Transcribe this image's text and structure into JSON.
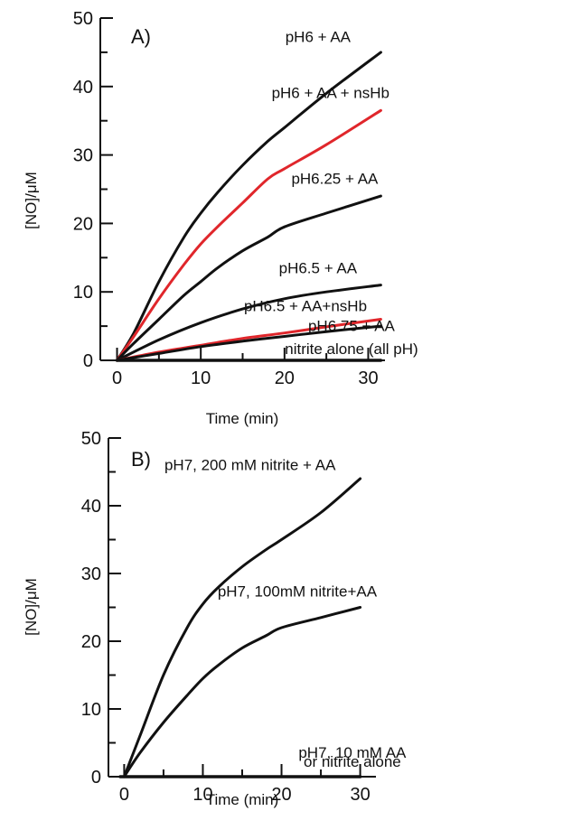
{
  "colors": {
    "black": "#111111",
    "red": "#e0262b"
  },
  "chart_data": [
    {
      "type": "line",
      "panel_label": "A)",
      "xlabel": "Time (min)",
      "ylabel": "[NO]/μM",
      "xlim": [
        -2,
        32
      ],
      "ylim": [
        0,
        50
      ],
      "xticks": [
        0,
        10,
        20,
        30
      ],
      "yticks": [
        0,
        10,
        20,
        30,
        40,
        50
      ],
      "grid": false,
      "series": [
        {
          "name": "pH6 + AA",
          "color": "#111111",
          "x": [
            0,
            2,
            5,
            8,
            10,
            12,
            15,
            18,
            20,
            25,
            31.5
          ],
          "y": [
            0,
            4,
            11.5,
            18,
            21.5,
            24.5,
            28.5,
            32,
            34,
            39,
            45
          ]
        },
        {
          "name": "pH6 + AA + nsHb",
          "color": "#e0262b",
          "x": [
            0,
            2,
            5,
            8,
            10,
            12,
            15,
            18,
            20,
            25,
            31.5
          ],
          "y": [
            0,
            3.5,
            9,
            14,
            17,
            19.5,
            23,
            26.5,
            28,
            31.5,
            36.5
          ]
        },
        {
          "name": "pH6.25 + AA",
          "color": "#111111",
          "x": [
            0,
            2,
            5,
            8,
            10,
            12,
            15,
            18,
            20,
            25,
            31.5
          ],
          "y": [
            0,
            2.5,
            6,
            9.5,
            11.5,
            13.5,
            16,
            18,
            19.5,
            21.5,
            24
          ]
        },
        {
          "name": "pH6.5 + AA",
          "color": "#111111",
          "x": [
            0,
            5,
            10,
            15,
            20,
            25,
            31.5
          ],
          "y": [
            0,
            3,
            5.5,
            7.5,
            9,
            10,
            11
          ]
        },
        {
          "name": "pH6.5 + AA+nsHb",
          "color": "#e0262b",
          "x": [
            0,
            5,
            10,
            15,
            20,
            25,
            31.5
          ],
          "y": [
            0,
            1.2,
            2.2,
            3.2,
            4,
            4.9,
            6
          ]
        },
        {
          "name": "pH6.75 + AA",
          "color": "#111111",
          "x": [
            0,
            5,
            10,
            15,
            20,
            25,
            31.5
          ],
          "y": [
            0,
            1,
            2,
            2.8,
            3.5,
            4.2,
            5
          ]
        },
        {
          "name": "nitrite alone (all pH)",
          "color": "#111111",
          "x": [
            0,
            31.5
          ],
          "y": [
            0,
            0
          ]
        }
      ],
      "annotations": [
        {
          "text": "pH6 + AA",
          "x": 24,
          "y": 46.5
        },
        {
          "text": "pH6 + AA + nsHb",
          "x": 25.5,
          "y": 38.3
        },
        {
          "text": "pH6.25 + AA",
          "x": 26,
          "y": 25.8
        },
        {
          "text": "pH6.5 + AA",
          "x": 24,
          "y": 12.7
        },
        {
          "text": "pH6.5 + AA+nsHb",
          "x": 22.5,
          "y": 7.2
        },
        {
          "text": "pH6.75 + AA",
          "x": 28,
          "y": 4.3
        },
        {
          "text": "nitrite alone (all pH)",
          "x": 28,
          "y": 0.9
        }
      ]
    },
    {
      "type": "line",
      "panel_label": "B)",
      "xlabel": "Time (min)",
      "ylabel": "[NO]/μM",
      "xlim": [
        -2,
        32
      ],
      "ylim": [
        0,
        50
      ],
      "xticks": [
        0,
        10,
        20,
        30
      ],
      "yticks": [
        0,
        10,
        20,
        30,
        40,
        50
      ],
      "grid": false,
      "series": [
        {
          "name": "pH7, 200 mM nitrite + AA",
          "color": "#111111",
          "x": [
            0,
            2,
            5,
            8,
            10,
            12,
            15,
            18,
            20,
            25,
            30
          ],
          "y": [
            0,
            6,
            15,
            22,
            25.5,
            28,
            31,
            33.5,
            35,
            39,
            44
          ]
        },
        {
          "name": "pH7, 100mM nitrite+AA",
          "color": "#111111",
          "x": [
            0,
            2,
            5,
            8,
            10,
            12,
            15,
            18,
            20,
            25,
            30
          ],
          "y": [
            0,
            3.5,
            8,
            12,
            14.5,
            16.5,
            19,
            20.8,
            22,
            23.5,
            25
          ]
        },
        {
          "name": "pH7, 10 mM AA or nitrite alone",
          "color": "#111111",
          "x": [
            -0.5,
            30
          ],
          "y": [
            0,
            0
          ]
        }
      ],
      "annotations": [
        {
          "text": "pH7, 200 mM nitrite + AA",
          "x": 16,
          "y": 45.3
        },
        {
          "text": "pH7, 100mM nitrite+AA",
          "x": 22,
          "y": 26.6
        },
        {
          "text": "pH7, 10 mM AA",
          "x": 29,
          "y": 2.8
        },
        {
          "text": "or nitrite alone",
          "x": 29,
          "y": 1.5
        }
      ]
    }
  ]
}
